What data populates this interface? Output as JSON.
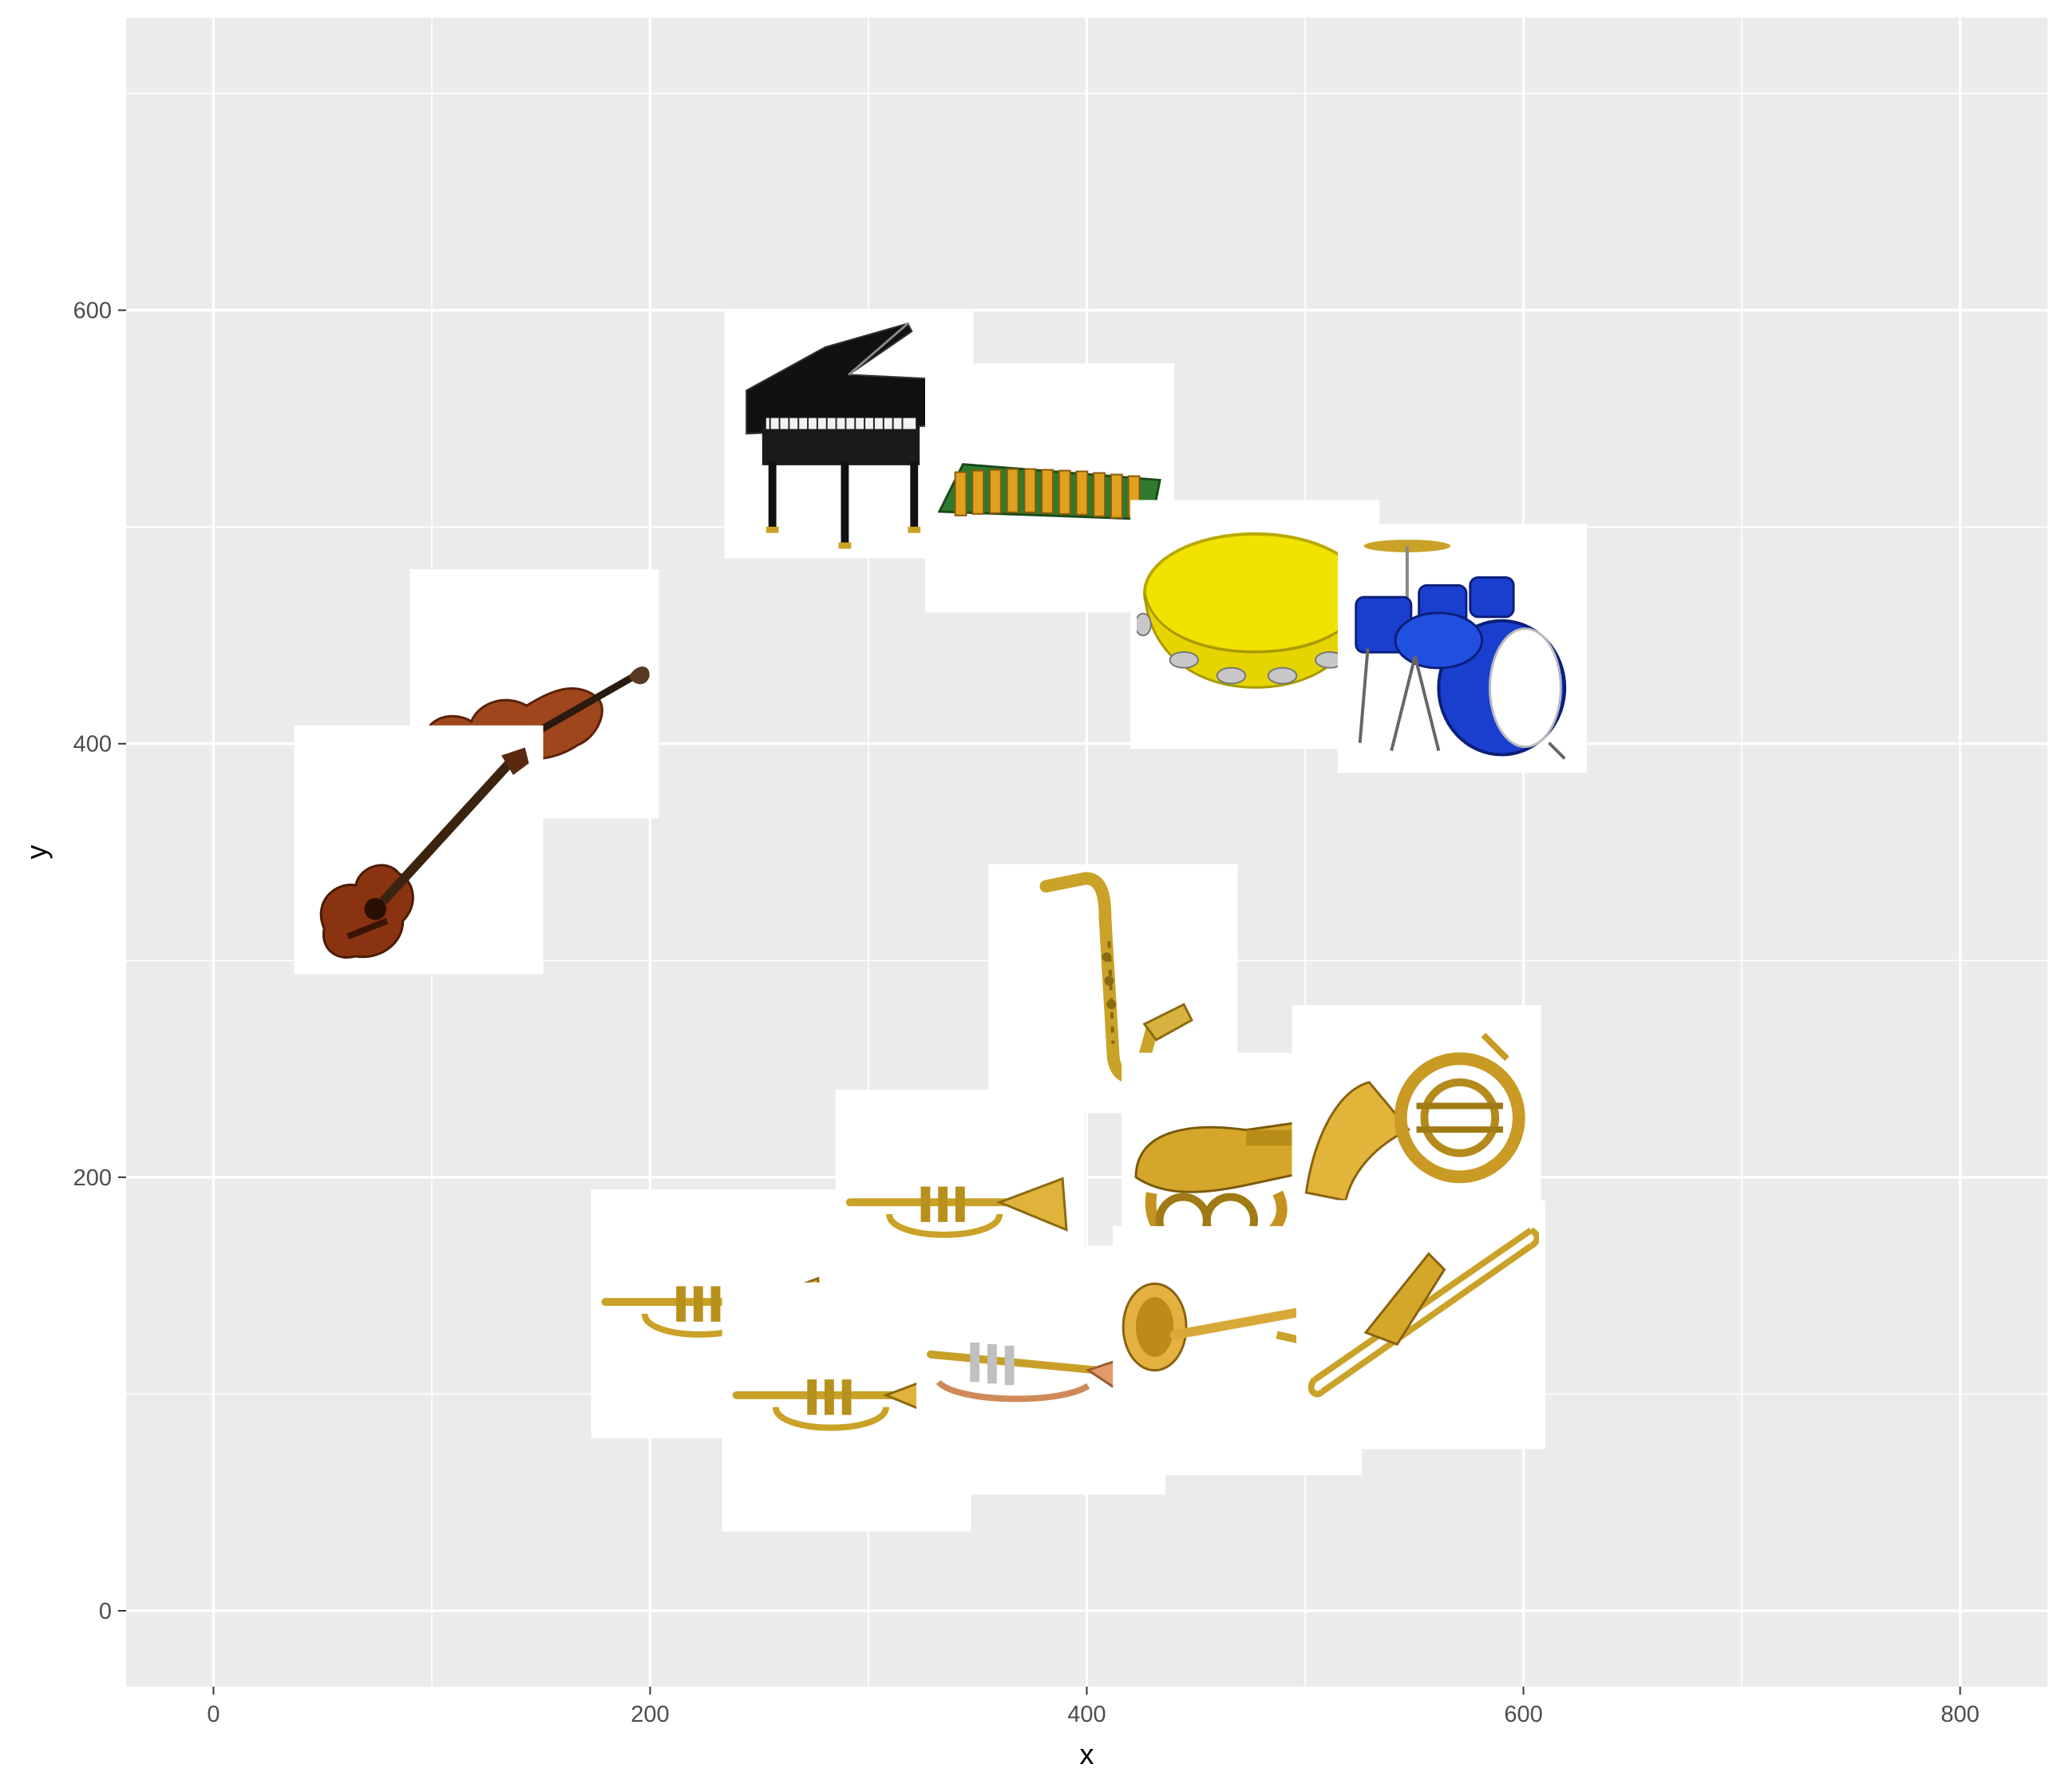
{
  "chart_data": {
    "type": "scatter",
    "marker": "instrument-image",
    "title": "",
    "xlabel": "x",
    "ylabel": "y",
    "xlim": [
      -40,
      840
    ],
    "ylim": [
      -35,
      735
    ],
    "x_ticks": [
      0,
      200,
      400,
      600,
      800
    ],
    "y_ticks": [
      0,
      200,
      400,
      600
    ],
    "grid": true,
    "legend": "none",
    "colors": {
      "panel": "#ebebeb",
      "grid": "#ffffff",
      "tick_text": "#4d4d4d"
    },
    "points": [
      {
        "icon": "violin-icon",
        "x": 147,
        "y": 423
      },
      {
        "icon": "acoustic-guitar-icon",
        "x": 94,
        "y": 351
      },
      {
        "icon": "grand-piano-icon",
        "x": 291,
        "y": 543
      },
      {
        "icon": "xylophone-icon",
        "x": 383,
        "y": 518
      },
      {
        "icon": "tambourine-icon",
        "x": 477,
        "y": 455
      },
      {
        "icon": "drum-kit-icon",
        "x": 572,
        "y": 444
      },
      {
        "icon": "saxophone-icon",
        "x": 412,
        "y": 287
      },
      {
        "icon": "tuba-icon",
        "x": 473,
        "y": 200
      },
      {
        "icon": "french-horn-icon",
        "x": 551,
        "y": 222
      },
      {
        "icon": "trumpet-icon",
        "x": 342,
        "y": 183
      },
      {
        "icon": "trumpet-icon",
        "x": 230,
        "y": 137
      },
      {
        "icon": "trumpet-icon",
        "x": 290,
        "y": 94
      },
      {
        "icon": "copper-trumpet-icon",
        "x": 379,
        "y": 111
      },
      {
        "icon": "flugelhorn-icon",
        "x": 469,
        "y": 120
      },
      {
        "icon": "trombone-icon",
        "x": 553,
        "y": 132
      }
    ]
  }
}
